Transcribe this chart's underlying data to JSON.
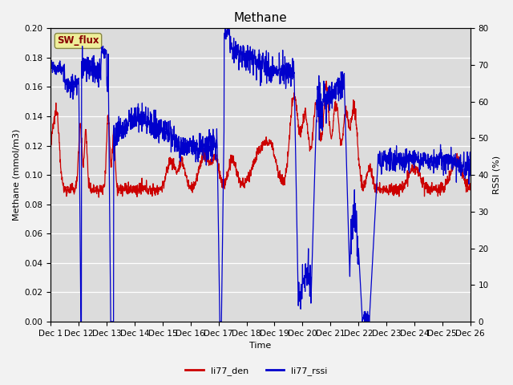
{
  "title": "Methane",
  "ylabel_left": "Methane (mmol/m3)",
  "ylabel_right": "RSSI (%)",
  "xlabel": "Time",
  "ylim_left": [
    0.0,
    0.2
  ],
  "ylim_right": [
    0,
    80
  ],
  "yticks_left": [
    0.0,
    0.02,
    0.04,
    0.06,
    0.08,
    0.1,
    0.12,
    0.14,
    0.16,
    0.18,
    0.2
  ],
  "yticks_right": [
    0,
    10,
    20,
    30,
    40,
    50,
    60,
    70,
    80
  ],
  "color_red": "#cc0000",
  "color_blue": "#0000cc",
  "background_color": "#dcdcdc",
  "sw_flux_label": "SW_flux",
  "sw_flux_bg": "#eeee99",
  "sw_flux_border": "#888844",
  "sw_flux_text_color": "#880000",
  "legend_labels": [
    "li77_den",
    "li77_rssi"
  ],
  "title_fontsize": 11,
  "axis_label_fontsize": 8,
  "tick_fontsize": 7.5,
  "legend_fontsize": 8,
  "linewidth": 0.9
}
